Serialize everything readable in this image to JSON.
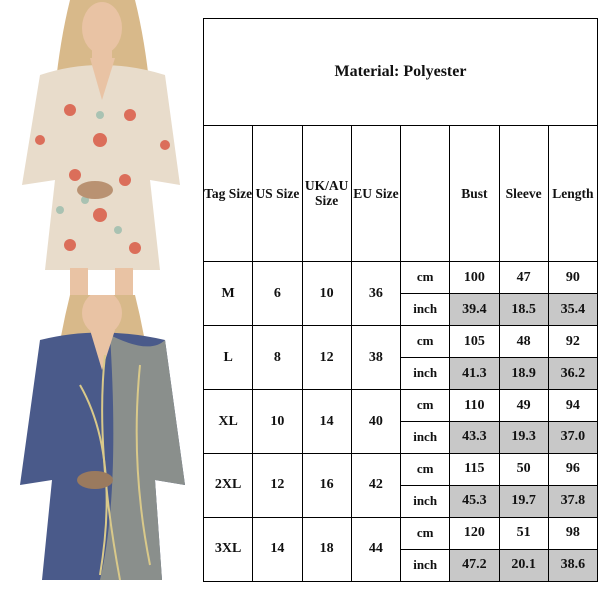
{
  "title": "Material:  Polyester",
  "headers": [
    "Tag Size",
    "US Size",
    "UK/AU Size",
    "EU Size",
    "",
    "Bust",
    "Sleeve",
    "Length"
  ],
  "units": [
    "cm",
    "inch"
  ],
  "rows": [
    {
      "tag": "M",
      "us": "6",
      "uk": "10",
      "eu": "36",
      "cm": [
        "100",
        "47",
        "90"
      ],
      "inch": [
        "39.4",
        "18.5",
        "35.4"
      ]
    },
    {
      "tag": "L",
      "us": "8",
      "uk": "12",
      "eu": "38",
      "cm": [
        "105",
        "48",
        "92"
      ],
      "inch": [
        "41.3",
        "18.9",
        "36.2"
      ]
    },
    {
      "tag": "XL",
      "us": "10",
      "uk": "14",
      "eu": "40",
      "cm": [
        "110",
        "49",
        "94"
      ],
      "inch": [
        "43.3",
        "19.3",
        "37.0"
      ]
    },
    {
      "tag": "2XL",
      "us": "12",
      "uk": "16",
      "eu": "42",
      "cm": [
        "115",
        "50",
        "96"
      ],
      "inch": [
        "45.3",
        "19.7",
        "37.8"
      ]
    },
    {
      "tag": "3XL",
      "us": "14",
      "uk": "18",
      "eu": "44",
      "cm": [
        "120",
        "51",
        "98"
      ],
      "inch": [
        "47.2",
        "20.1",
        "38.6"
      ]
    }
  ],
  "colors": {
    "inch_shade": "#c8c8c8",
    "dress_top": "#e8dccb",
    "dress_top_pattern": "#d9533f",
    "dress_bottom": "#4a5a8a",
    "dress_bottom_accent": "#d9c98a"
  }
}
